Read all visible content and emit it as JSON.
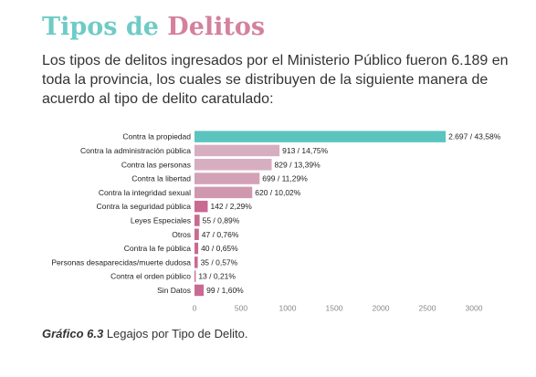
{
  "page": {
    "title_part1": "Tipos de ",
    "title_part2": "Delitos",
    "intro": "Los tipos de delitos ingresados por el Ministerio Público fueron 6.189 en toda la provincia, los cuales se distribuyen de la siguiente manera de acuerdo al tipo de delito caratulado:",
    "caption_number": "Gráfico 6.3",
    "caption_text": " Legajos por Tipo de Delito."
  },
  "chart_data": {
    "type": "bar",
    "orientation": "horizontal",
    "categories": [
      "Contra la propiedad",
      "Contra la administración pública",
      "Contra las personas",
      "Contra la libertad",
      "Contra la integridad sexual",
      "Contra la seguridad pública",
      "Leyes Especiales",
      "Otros",
      "Contra la fe pública",
      "Personas desaparecidas/muerte dudosa",
      "Contra el orden público",
      "Sin Datos"
    ],
    "values": [
      2697,
      913,
      829,
      699,
      620,
      142,
      55,
      47,
      40,
      35,
      13,
      99
    ],
    "data_labels": [
      "2.697 / 43,58%",
      "913 / 14,75%",
      "829 / 13,39%",
      "699 / 11,29%",
      "620 / 10,02%",
      "142 / 2,29%",
      "55 / 0,89%",
      "47 / 0,76%",
      "40 / 0,65%",
      "35 / 0,57%",
      "13 / 0,21%",
      "99 / 1,60%"
    ],
    "bar_colors": [
      "#5cc4bf",
      "#d7aec0",
      "#d7aec0",
      "#d3a2b6",
      "#d098ae",
      "#c96a92",
      "#c96a92",
      "#c96a92",
      "#c96a92",
      "#c96a92",
      "#c96a92",
      "#c96a92"
    ],
    "x_ticks": [
      0,
      500,
      1000,
      1500,
      2000,
      2500,
      3000
    ],
    "x_tick_labels": [
      "0",
      "500",
      "1000",
      "1500",
      "2000",
      "2500",
      "3000"
    ],
    "xlim": [
      0,
      3000
    ],
    "grid": false,
    "title": "",
    "xlabel": "",
    "ylabel": ""
  }
}
